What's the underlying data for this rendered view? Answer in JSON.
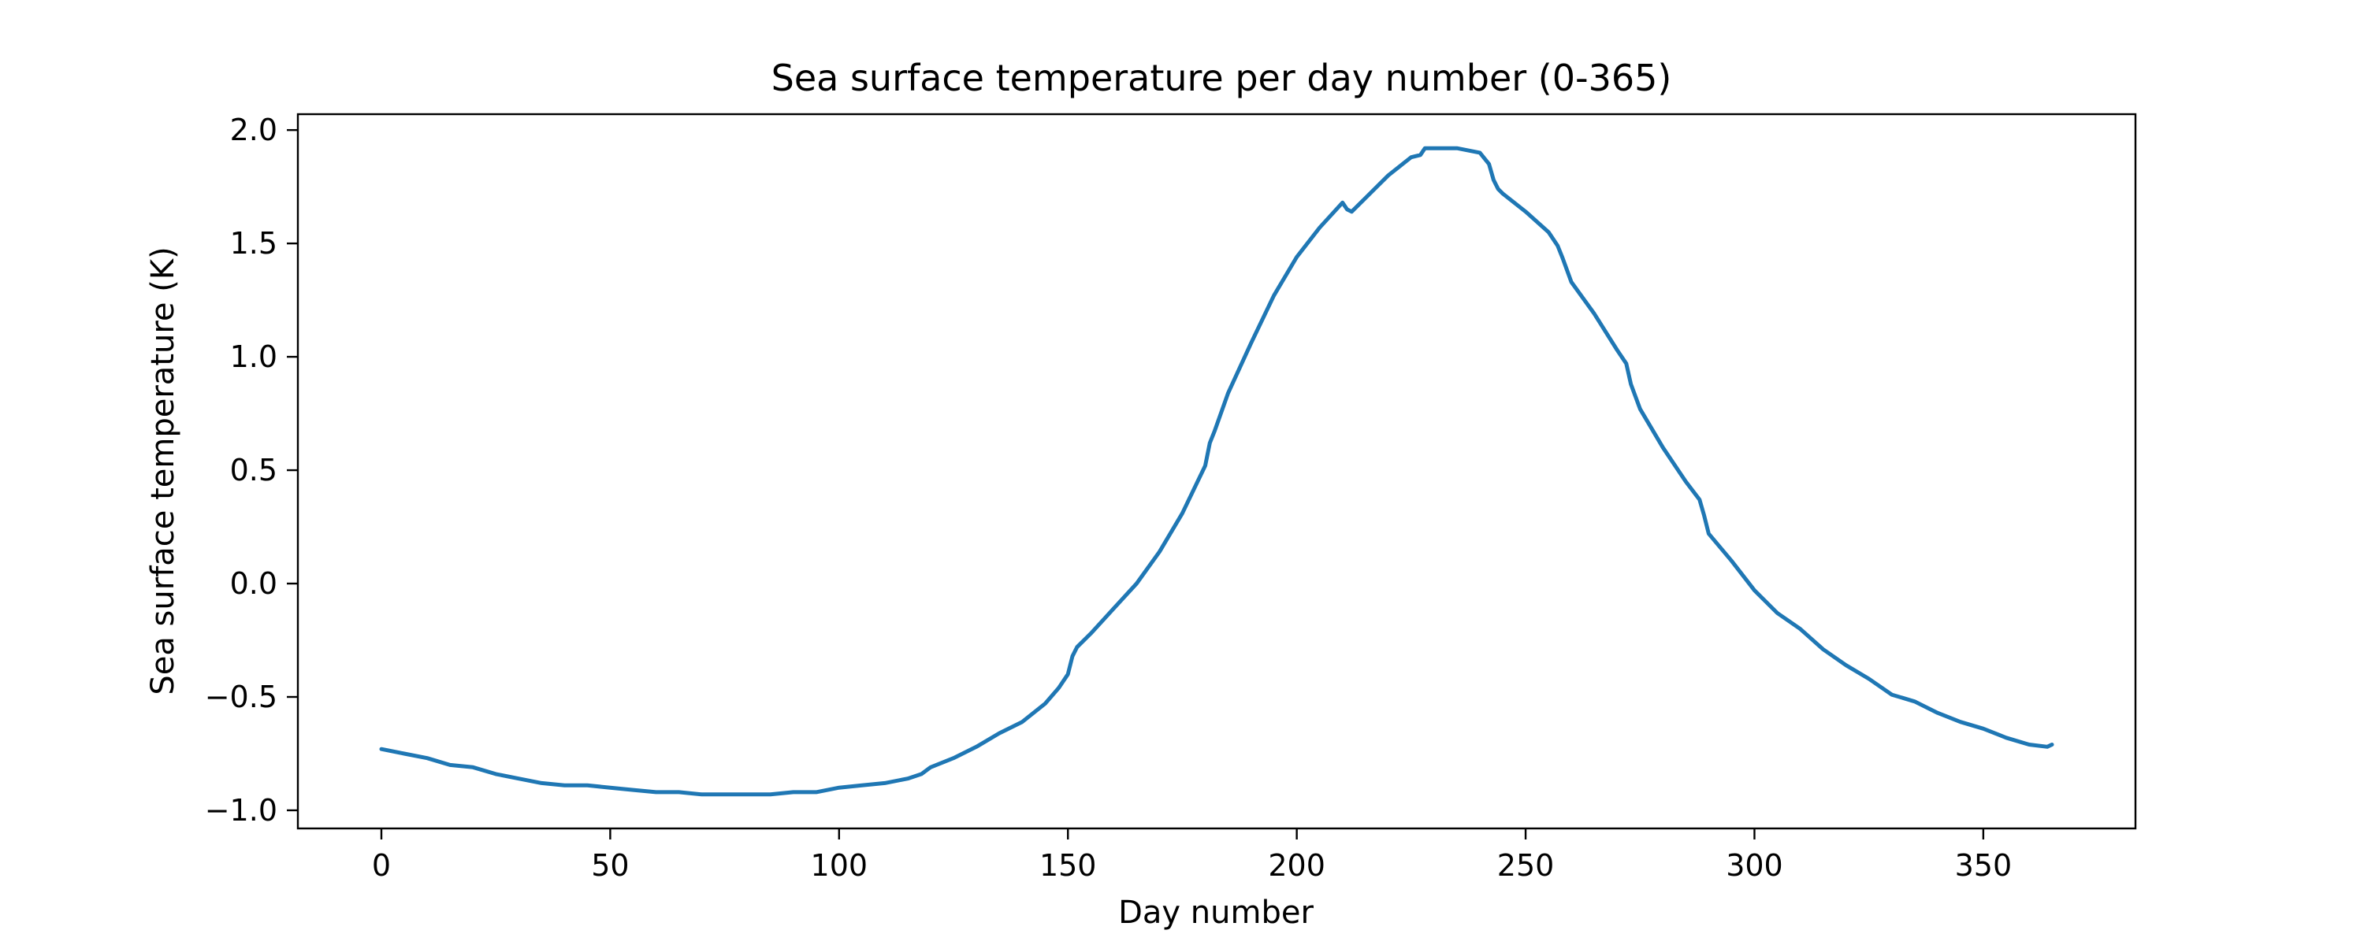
{
  "chart_data": {
    "type": "line",
    "title": "Sea surface temperature per day number (0-365)",
    "xlabel": "Day number",
    "ylabel": "Sea surface temperature (K)",
    "xlim": [
      -18.25,
      383.25
    ],
    "ylim": [
      -1.08,
      2.07
    ],
    "xticks": [
      0,
      50,
      100,
      150,
      200,
      250,
      300,
      350
    ],
    "xtick_labels": [
      "0",
      "50",
      "100",
      "150",
      "200",
      "250",
      "300",
      "350"
    ],
    "yticks": [
      -1.0,
      -0.5,
      0.0,
      0.5,
      1.0,
      1.5,
      2.0
    ],
    "ytick_labels": [
      "−1.0",
      "−0.5",
      "0.0",
      "0.5",
      "1.0",
      "1.5",
      "2.0"
    ],
    "grid": false,
    "line_color": "#1f77b4",
    "series": [
      {
        "x": [
          0,
          5,
          10,
          15,
          20,
          25,
          30,
          35,
          40,
          45,
          50,
          55,
          60,
          65,
          70,
          75,
          80,
          85,
          90,
          95,
          100,
          105,
          110,
          115,
          118,
          120,
          125,
          130,
          135,
          140,
          145,
          148,
          150,
          151,
          152,
          155,
          160,
          165,
          170,
          175,
          180,
          181,
          182,
          185,
          190,
          195,
          200,
          205,
          210,
          211,
          212,
          215,
          220,
          225,
          227,
          228,
          230,
          235,
          240,
          242,
          243,
          244,
          245,
          250,
          255,
          257,
          258,
          260,
          265,
          270,
          272,
          273,
          275,
          280,
          285,
          288,
          289,
          290,
          295,
          300,
          305,
          310,
          315,
          320,
          325,
          330,
          335,
          340,
          345,
          350,
          355,
          360,
          364,
          365
        ],
        "y": [
          -0.73,
          -0.75,
          -0.77,
          -0.8,
          -0.81,
          -0.84,
          -0.86,
          -0.88,
          -0.89,
          -0.89,
          -0.9,
          -0.91,
          -0.92,
          -0.92,
          -0.93,
          -0.93,
          -0.93,
          -0.93,
          -0.92,
          -0.92,
          -0.9,
          -0.89,
          -0.88,
          -0.86,
          -0.84,
          -0.81,
          -0.77,
          -0.72,
          -0.66,
          -0.61,
          -0.53,
          -0.46,
          -0.4,
          -0.32,
          -0.28,
          -0.22,
          -0.11,
          0.0,
          0.14,
          0.31,
          0.52,
          0.62,
          0.67,
          0.84,
          1.06,
          1.27,
          1.44,
          1.57,
          1.68,
          1.65,
          1.64,
          1.7,
          1.8,
          1.88,
          1.89,
          1.92,
          1.92,
          1.92,
          1.9,
          1.85,
          1.78,
          1.74,
          1.72,
          1.64,
          1.55,
          1.49,
          1.44,
          1.33,
          1.19,
          1.03,
          0.97,
          0.88,
          0.77,
          0.6,
          0.45,
          0.37,
          0.3,
          0.22,
          0.1,
          -0.03,
          -0.13,
          -0.2,
          -0.29,
          -0.36,
          -0.42,
          -0.49,
          -0.52,
          -0.57,
          -0.61,
          -0.64,
          -0.68,
          -0.71,
          -0.72,
          -0.71
        ]
      }
    ]
  }
}
